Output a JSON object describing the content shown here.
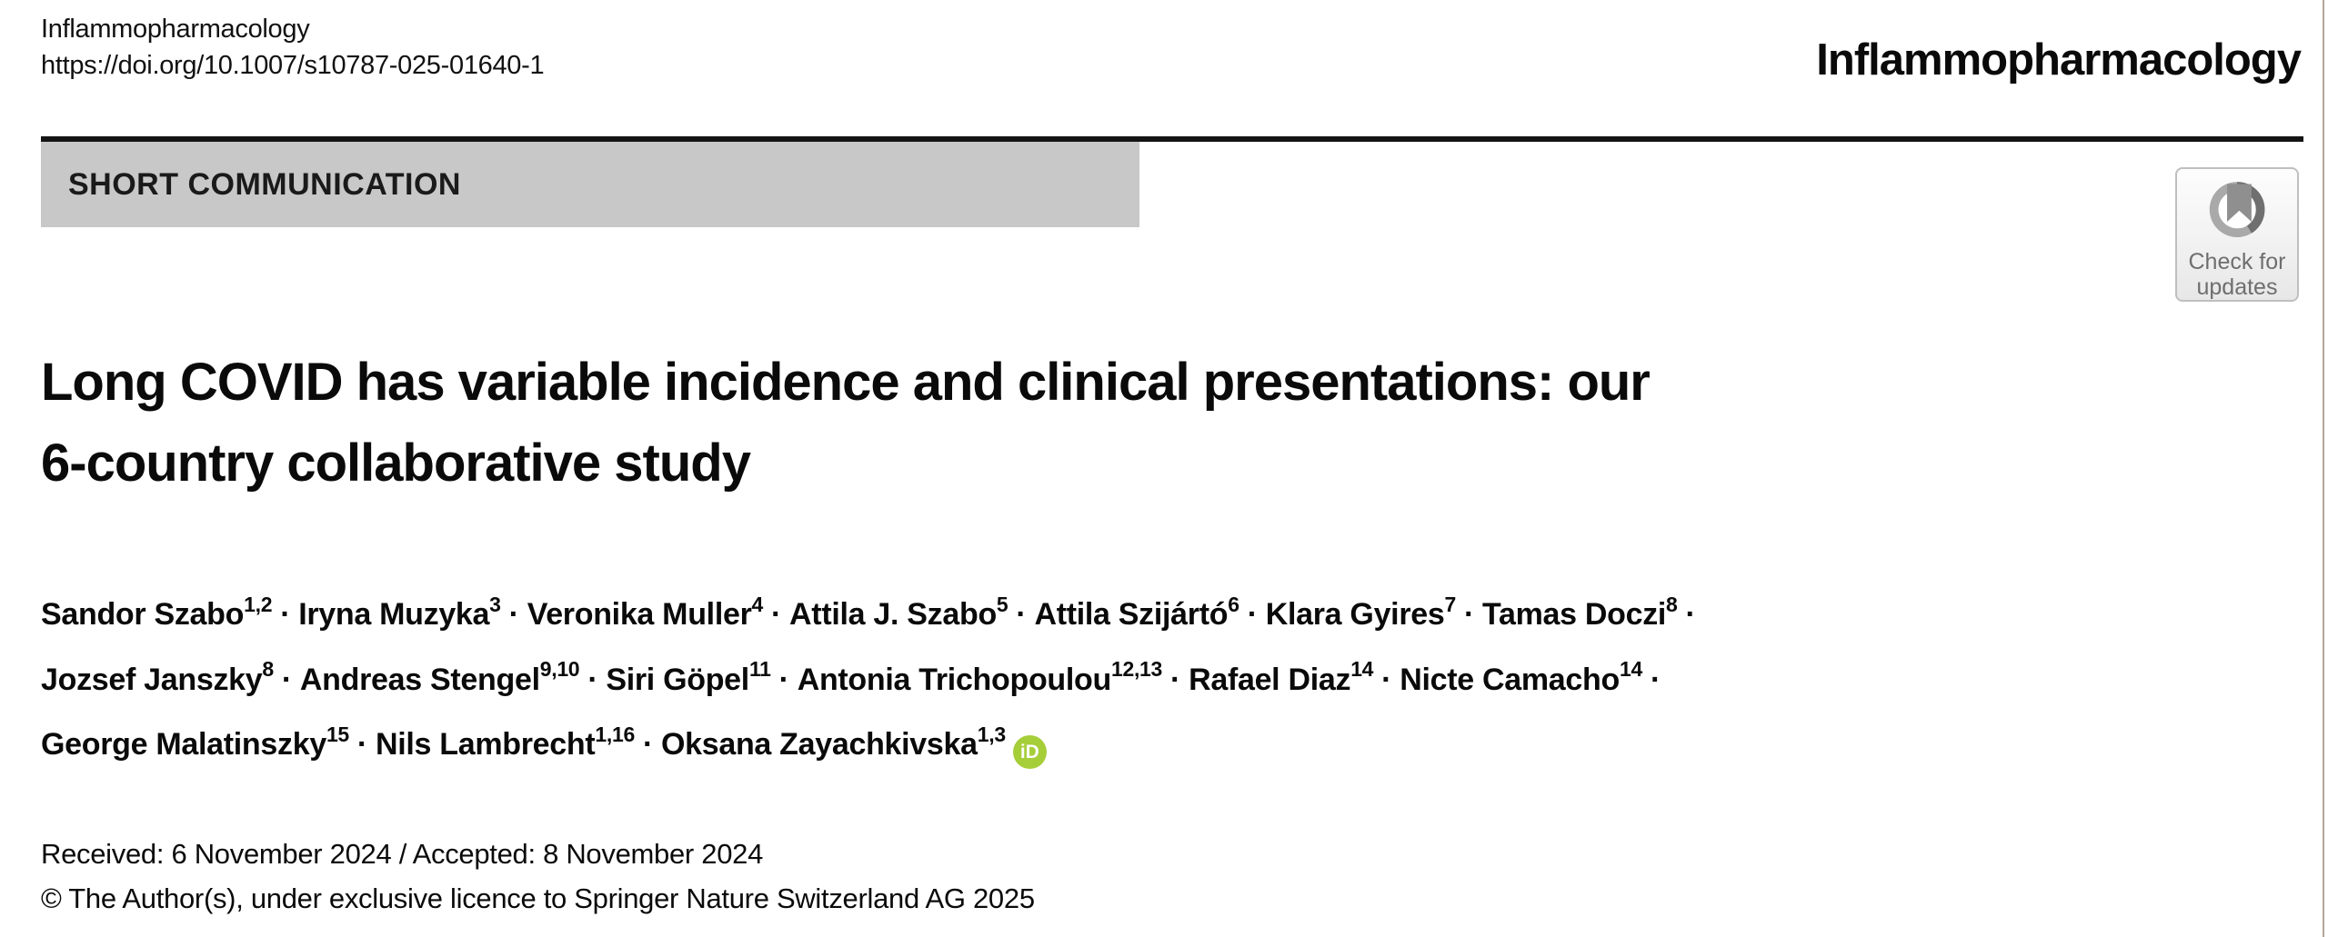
{
  "masthead": {
    "journal_small": "Inflammopharmacology",
    "doi": "https://doi.org/10.1007/s10787-025-01640-1",
    "journal_large": "Inflammopharmacology"
  },
  "banner": {
    "label": "SHORT COMMUNICATION"
  },
  "badge": {
    "line1": "Check for",
    "line2": "updates",
    "icon": "crossmark-icon"
  },
  "title": {
    "line1": "Long COVID has variable incidence and clinical presentations: our",
    "line2": "6-country collaborative study"
  },
  "authors": {
    "separator": "·",
    "orcid_label": "iD",
    "list": [
      {
        "name": "Sandor Szabo",
        "sup": "1,2"
      },
      {
        "name": "Iryna Muzyka",
        "sup": "3"
      },
      {
        "name": "Veronika Muller",
        "sup": "4"
      },
      {
        "name": "Attila J. Szabo",
        "sup": "5"
      },
      {
        "name": "Attila Szijártó",
        "sup": "6"
      },
      {
        "name": "Klara Gyires",
        "sup": "7"
      },
      {
        "name": "Tamas Doczi",
        "sup": "8",
        "break_after": true
      },
      {
        "name": "Jozsef Janszky",
        "sup": "8"
      },
      {
        "name": "Andreas Stengel",
        "sup": "9,10"
      },
      {
        "name": "Siri Göpel",
        "sup": "11"
      },
      {
        "name": "Antonia Trichopoulou",
        "sup": "12,13"
      },
      {
        "name": "Rafael Diaz",
        "sup": "14"
      },
      {
        "name": "Nicte Camacho",
        "sup": "14",
        "break_after": true
      },
      {
        "name": "George Malatinszky",
        "sup": "15"
      },
      {
        "name": "Nils Lambrecht",
        "sup": "1,16"
      },
      {
        "name": "Oksana Zayachkivska",
        "sup": "1,3",
        "orcid": true
      }
    ]
  },
  "meta": {
    "received_accepted": "Received: 6 November 2024 / Accepted: 8 November 2024",
    "copyright": "© The Author(s), under exclusive licence to Springer Nature Switzerland AG 2025"
  },
  "colors": {
    "banner_gray": "#c8c8c8",
    "rule_black": "#141414",
    "orcid_green": "#a6ce39",
    "badge_text_gray": "#6e6e6e",
    "page_edge_line": "#b3a59b"
  }
}
